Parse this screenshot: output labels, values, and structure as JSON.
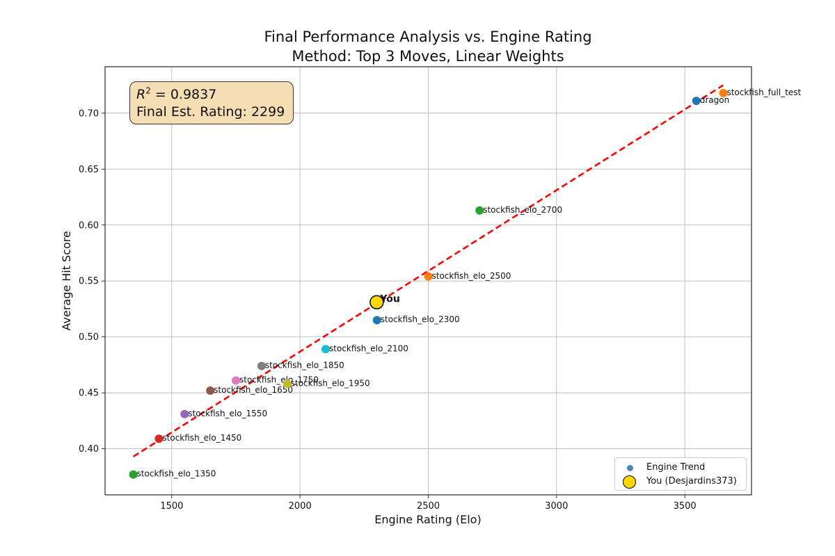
{
  "chart_data": {
    "type": "scatter",
    "title_line1": "Final Performance Analysis vs. Engine Rating",
    "title_line2": "Method: Top 3 Moves, Linear Weights",
    "xlabel": "Engine Rating (Elo)",
    "ylabel": "Average Hit Score",
    "xlim": [
      1240,
      3760
    ],
    "ylim": [
      0.3588,
      0.7415
    ],
    "x_ticks": [
      1500,
      2000,
      2500,
      3000,
      3500
    ],
    "y_ticks": [
      0.4,
      0.45,
      0.5,
      0.55,
      0.6,
      0.65,
      0.7
    ],
    "grid": true,
    "points": [
      {
        "label": "stockfish_elo_1350",
        "x": 1350,
        "y": 0.377,
        "color": "#2ca02c"
      },
      {
        "label": "stockfish_elo_1450",
        "x": 1450,
        "y": 0.409,
        "color": "#d62728"
      },
      {
        "label": "stockfish_elo_1550",
        "x": 1550,
        "y": 0.431,
        "color": "#9467bd"
      },
      {
        "label": "stockfish_elo_1650",
        "x": 1650,
        "y": 0.452,
        "color": "#8c564b"
      },
      {
        "label": "stockfish_elo_1750",
        "x": 1750,
        "y": 0.461,
        "color": "#e377c2"
      },
      {
        "label": "stockfish_elo_1850",
        "x": 1850,
        "y": 0.474,
        "color": "#7f7f7f"
      },
      {
        "label": "stockfish_elo_1950",
        "x": 1950,
        "y": 0.458,
        "color": "#bcbd22"
      },
      {
        "label": "stockfish_elo_2100",
        "x": 2100,
        "y": 0.489,
        "color": "#17becf"
      },
      {
        "label": "stockfish_elo_2300",
        "x": 2300,
        "y": 0.515,
        "color": "#1f77b4"
      },
      {
        "label": "stockfish_elo_2500",
        "x": 2500,
        "y": 0.554,
        "color": "#ff7f0e"
      },
      {
        "label": "stockfish_elo_2700",
        "x": 2700,
        "y": 0.613,
        "color": "#2ca02c"
      },
      {
        "label": "dragon",
        "x": 3545,
        "y": 0.711,
        "color": "#1f77b4"
      },
      {
        "label": "stockfish_full_test",
        "x": 3650,
        "y": 0.718,
        "color": "#ff7f0e"
      }
    ],
    "you": {
      "label": "You",
      "x": 2299,
      "y": 0.531,
      "color": "#ffd700"
    },
    "trendline": {
      "x": [
        1350,
        3650
      ],
      "y": [
        0.393,
        0.725
      ],
      "color": "#ff0000",
      "style": "dashed"
    },
    "annotation": {
      "r2_prefix": "R",
      "r2_sup": "2",
      "r2_text": " = 0.9837",
      "rating_text": "Final Est. Rating: 2299"
    },
    "legend": {
      "position": "lower-right",
      "entries": [
        "Engine Trend",
        "You (Desjardins373)"
      ]
    }
  }
}
